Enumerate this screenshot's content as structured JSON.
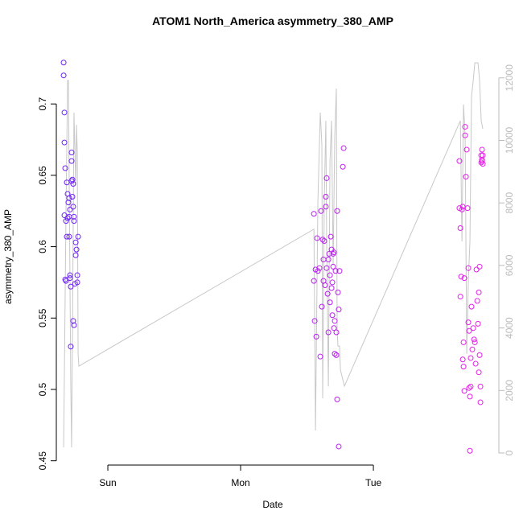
{
  "chart_data": {
    "type": "scatter",
    "title": "ATOM1 North_America asymmetry_380_AMP",
    "x_label": "Date",
    "y_label": "asymmetry_380_AMP",
    "xlim": [
      0.612,
      3.945
    ],
    "xticks": [
      {
        "value": 1,
        "label": "Sun"
      },
      {
        "value": 2,
        "label": "Mon"
      },
      {
        "value": 3,
        "label": "Tue"
      }
    ],
    "ylim": [
      0.447,
      0.739
    ],
    "yticks": [
      0.45,
      0.5,
      0.55,
      0.6,
      0.65,
      0.7
    ],
    "y2lim": [
      -386,
      12947
    ],
    "y2ticks": [
      0,
      2000,
      4000,
      6000,
      8000,
      10000,
      12000
    ],
    "y2_color": "#bbbbbb",
    "series": [
      {
        "type": "scatter",
        "color_range": [
          "#6a22f8",
          "#ec1ee8"
        ],
        "x": [
          0.667,
          0.667,
          0.673,
          0.673,
          0.679,
          0.673,
          0.685,
          0.679,
          0.685,
          0.691,
          0.697,
          0.697,
          0.703,
          0.691,
          0.709,
          0.709,
          0.715,
          0.709,
          0.715,
          0.721,
          0.721,
          0.727,
          0.727,
          0.727,
          0.733,
          0.733,
          0.739,
          0.739,
          0.745,
          0.745,
          0.739,
          0.745,
          0.752,
          0.758,
          0.764,
          0.758,
          0.77,
          0.776,
          0.77,
          0.715,
          2.552,
          2.552,
          2.558,
          2.564,
          2.57,
          2.576,
          2.582,
          2.594,
          2.6,
          2.606,
          2.612,
          2.618,
          2.624,
          2.624,
          2.63,
          2.636,
          2.642,
          2.642,
          2.648,
          2.648,
          2.655,
          2.661,
          2.661,
          2.667,
          2.673,
          2.673,
          2.679,
          2.685,
          2.691,
          2.697,
          2.703,
          2.703,
          2.709,
          2.715,
          2.721,
          2.727,
          2.727,
          2.733,
          2.739,
          2.739,
          2.745,
          2.77,
          2.776,
          2.697,
          2.691,
          2.685,
          2.721,
          2.709,
          3.648,
          3.648,
          3.655,
          3.655,
          3.661,
          3.667,
          3.673,
          3.673,
          3.679,
          3.679,
          3.685,
          3.685,
          3.691,
          3.691,
          3.697,
          3.703,
          3.709,
          3.715,
          3.715,
          3.721,
          3.727,
          3.727,
          3.733,
          3.739,
          3.745,
          3.752,
          3.764,
          3.776,
          3.782,
          3.788,
          3.794,
          3.794,
          3.8,
          3.8,
          3.806,
          3.806,
          3.812,
          3.812,
          3.818,
          3.818,
          3.824,
          3.721,
          3.733,
          3.758,
          3.77,
          3.818,
          3.824
        ],
        "values": [
          0.729,
          0.72,
          0.694,
          0.673,
          0.655,
          0.622,
          0.618,
          0.577,
          0.576,
          0.645,
          0.637,
          0.62,
          0.631,
          0.607,
          0.621,
          0.634,
          0.626,
          0.607,
          0.58,
          0.572,
          0.53,
          0.666,
          0.66,
          0.646,
          0.647,
          0.635,
          0.644,
          0.628,
          0.621,
          0.618,
          0.548,
          0.545,
          0.574,
          0.603,
          0.598,
          0.594,
          0.58,
          0.607,
          0.575,
          0.578,
          0.623,
          0.576,
          0.548,
          0.584,
          0.537,
          0.606,
          0.583,
          0.585,
          0.523,
          0.625,
          0.558,
          0.605,
          0.591,
          0.576,
          0.604,
          0.573,
          0.635,
          0.628,
          0.648,
          0.585,
          0.567,
          0.54,
          0.591,
          0.595,
          0.561,
          0.58,
          0.607,
          0.598,
          0.552,
          0.586,
          0.596,
          0.543,
          0.525,
          0.583,
          0.524,
          0.625,
          0.493,
          0.568,
          0.556,
          0.46,
          0.583,
          0.656,
          0.669,
          0.595,
          0.575,
          0.571,
          0.54,
          0.548,
          0.66,
          0.627,
          0.613,
          0.565,
          0.579,
          0.626,
          0.628,
          0.521,
          0.516,
          0.533,
          0.499,
          0.578,
          0.684,
          0.678,
          0.649,
          0.668,
          0.627,
          0.585,
          0.547,
          0.541,
          0.495,
          0.457,
          0.522,
          0.558,
          0.528,
          0.543,
          0.533,
          0.584,
          0.562,
          0.546,
          0.568,
          0.512,
          0.586,
          0.524,
          0.502,
          0.491,
          0.664,
          0.659,
          0.668,
          0.661,
          0.664,
          0.501,
          0.502,
          0.535,
          0.518,
          0.66,
          0.658
        ]
      },
      {
        "type": "line",
        "axis": "y2",
        "color": "#c8c8c8",
        "x": [
          0.667,
          0.673,
          0.685,
          0.697,
          0.703,
          0.709,
          0.721,
          0.727,
          0.733,
          0.745,
          0.758,
          0.764,
          0.77,
          0.776,
          0.782,
          2.552,
          2.558,
          2.564,
          2.582,
          2.6,
          2.612,
          2.618,
          2.63,
          2.642,
          2.648,
          2.661,
          2.673,
          2.685,
          2.697,
          2.709,
          2.721,
          2.727,
          2.733,
          2.745,
          2.752,
          2.782,
          3.655,
          3.667,
          3.679,
          3.691,
          3.703,
          3.715,
          3.727,
          3.739,
          3.752,
          3.764,
          3.788,
          3.8,
          3.812,
          3.824
        ],
        "values": [
          180,
          2670,
          7820,
          11920,
          11920,
          8570,
          2130,
          180,
          3420,
          10890,
          8570,
          10500,
          9600,
          3170,
          2780,
          7160,
          4200,
          720,
          8060,
          10890,
          9860,
          1750,
          8060,
          10630,
          6770,
          2130,
          9340,
          10630,
          6000,
          10120,
          11660,
          3940,
          3420,
          3420,
          2650,
          2140,
          10630,
          6770,
          11150,
          10120,
          3170,
          5480,
          6770,
          11400,
          11920,
          12480,
          12480,
          11920,
          10630,
          10370
        ]
      }
    ]
  }
}
